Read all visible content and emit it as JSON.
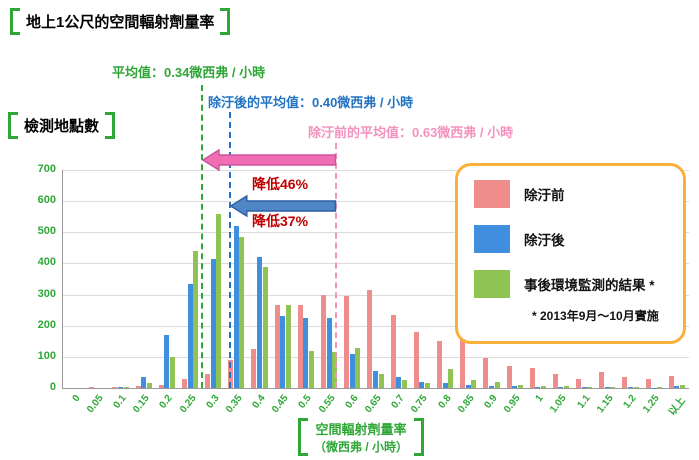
{
  "page": {
    "title": "地上1公尺的空間輻射劑量率",
    "y_axis_title": "檢測地點數",
    "x_axis_title_line1": "空間輻射劑量率",
    "x_axis_title_line2": "（微西弗 / 小時）"
  },
  "annotations": {
    "mean_monitoring": "平均值：0.34微西弗 / 小時",
    "mean_after": "除汙後的平均值：0.40微西弗 / 小時",
    "mean_before": "除汙前的平均值：0.63微西弗 / 小時",
    "reduction_46": "降低46%",
    "reduction_37": "降低37%"
  },
  "legend": {
    "items": [
      {
        "label": "除汙前",
        "color": "#EF8C8C"
      },
      {
        "label": "除汙後",
        "color": "#3F8FDE"
      },
      {
        "label": "事後環境監測的結果 *",
        "color": "#8FC353"
      }
    ],
    "note": "* 2013年9月～10月實施"
  },
  "chart_data": {
    "type": "bar",
    "title": "地上1公尺的空間輻射劑量率",
    "xlabel": "空間輻射劑量率（微西弗 / 小時）",
    "ylabel": "檢測地點數",
    "ylim": [
      0,
      700
    ],
    "ytick_step": 100,
    "grid": true,
    "legend_position": "right",
    "categories": [
      "0",
      "0.05",
      "0.1",
      "0.15",
      "0.2",
      "0.25",
      "0.3",
      "0.35",
      "0.4",
      "0.45",
      "0.5",
      "0.55",
      "0.6",
      "0.65",
      "0.7",
      "0.75",
      "0.8",
      "0.85",
      "0.9",
      "0.95",
      "1",
      "1.05",
      "1.1",
      "1.15",
      "1.2",
      "1.25",
      "以上"
    ],
    "series": [
      {
        "name": "除汙前",
        "color": "#EF8C8C",
        "values": [
          0,
          2,
          3,
          5,
          10,
          30,
          45,
          90,
          125,
          265,
          265,
          300,
          295,
          315,
          235,
          180,
          150,
          190,
          95,
          70,
          65,
          45,
          30,
          50,
          35,
          30,
          40
        ]
      },
      {
        "name": "除汙後",
        "color": "#3F8FDE",
        "values": [
          0,
          0,
          3,
          35,
          170,
          335,
          415,
          520,
          420,
          230,
          225,
          225,
          110,
          55,
          35,
          20,
          15,
          10,
          8,
          5,
          4,
          3,
          3,
          2,
          2,
          1,
          5
        ]
      },
      {
        "name": "事後環境監測的結果",
        "color": "#8FC353",
        "values": [
          0,
          0,
          3,
          15,
          100,
          440,
          560,
          485,
          390,
          265,
          120,
          115,
          130,
          45,
          25,
          15,
          60,
          25,
          20,
          10,
          8,
          5,
          4,
          3,
          2,
          2,
          10
        ]
      }
    ],
    "mean_lines": [
      {
        "name": "事後環境監測平均值",
        "value": 0.34,
        "unit": "微西弗/小時",
        "color": "#2FA737"
      },
      {
        "name": "除汙後平均值",
        "value": 0.4,
        "unit": "微西弗/小時",
        "color": "#2273C3"
      },
      {
        "name": "除汙前平均值",
        "value": 0.63,
        "unit": "微西弗/小時",
        "color": "#F492BE"
      }
    ],
    "reduction_annotations": [
      {
        "label": "降低46%",
        "from": 0.63,
        "to": 0.34,
        "arrow_color": "#F16DB4"
      },
      {
        "label": "降低37%",
        "from": 0.63,
        "to": 0.4,
        "arrow_color": "#4E86C6"
      }
    ]
  }
}
